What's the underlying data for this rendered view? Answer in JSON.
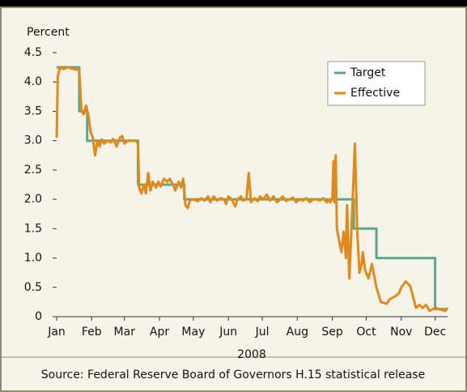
{
  "chart_data": {
    "type": "line",
    "title": "Percent",
    "x_label": "2008",
    "source": "Source: Federal Reserve Board of Governors H.15 statistical release",
    "xlim": [
      0,
      346
    ],
    "xticks": [
      {
        "value": 0,
        "label": "Jan"
      },
      {
        "value": 31,
        "label": "Feb"
      },
      {
        "value": 60,
        "label": "Mar"
      },
      {
        "value": 91,
        "label": "Apr"
      },
      {
        "value": 121,
        "label": "May"
      },
      {
        "value": 152,
        "label": "Jun"
      },
      {
        "value": 182,
        "label": "Jul"
      },
      {
        "value": 213,
        "label": "Aug"
      },
      {
        "value": 244,
        "label": "Sep"
      },
      {
        "value": 274,
        "label": "Oct"
      },
      {
        "value": 305,
        "label": "Nov"
      },
      {
        "value": 335,
        "label": "Dec"
      }
    ],
    "ylim": [
      0,
      4.5
    ],
    "yticks": [
      0,
      0.5,
      {
        "value": 1,
        "label": "1.0"
      },
      1.5,
      {
        "value": 2,
        "label": "2.0"
      },
      2.5,
      {
        "value": 3,
        "label": "3.0"
      },
      3.5,
      {
        "value": 4,
        "label": "4.0"
      },
      4.5
    ],
    "grid": false,
    "legend": "upper right",
    "series": [
      {
        "name": "Target",
        "color": "#5fa58a",
        "x": [
          0,
          20,
          20,
          27,
          27,
          72,
          72,
          113,
          113,
          263,
          263,
          283,
          283,
          335,
          335,
          346
        ],
        "values": [
          4.25,
          4.25,
          3.5,
          3.5,
          3.0,
          3.0,
          2.25,
          2.25,
          2.0,
          2.0,
          1.5,
          1.5,
          1.0,
          1.0,
          0.13,
          0.13
        ]
      },
      {
        "name": "Effective",
        "color": "#e0891c",
        "x": [
          0,
          1,
          3,
          6,
          10,
          15,
          20,
          22,
          24,
          26,
          28,
          30,
          32,
          34,
          36,
          38,
          40,
          42,
          45,
          48,
          50,
          53,
          56,
          58,
          60,
          63,
          66,
          70,
          72,
          73,
          75,
          77,
          79,
          81,
          83,
          85,
          88,
          90,
          92,
          95,
          98,
          100,
          103,
          105,
          108,
          110,
          112,
          114,
          116,
          118,
          120,
          125,
          128,
          131,
          134,
          136,
          139,
          142,
          145,
          148,
          150,
          152,
          155,
          158,
          160,
          163,
          165,
          168,
          170,
          172,
          175,
          178,
          180,
          183,
          186,
          189,
          192,
          195,
          198,
          200,
          203,
          206,
          209,
          212,
          215,
          218,
          221,
          224,
          227,
          230,
          233,
          236,
          239,
          241,
          242,
          244,
          245,
          246,
          247,
          248,
          250,
          252,
          254,
          256,
          257,
          259,
          261,
          264,
          266,
          268,
          270,
          271,
          273,
          276,
          279,
          283,
          287,
          292,
          295,
          300,
          303,
          305,
          309,
          313,
          316,
          318,
          321,
          324,
          327,
          330,
          335,
          340,
          344,
          346
        ],
        "values": [
          3.05,
          4.1,
          4.25,
          4.22,
          4.25,
          4.22,
          4.2,
          3.5,
          3.45,
          3.6,
          3.45,
          3.15,
          3.05,
          2.75,
          3.0,
          2.9,
          3.02,
          2.95,
          3.0,
          2.97,
          3.03,
          2.9,
          3.05,
          3.08,
          2.95,
          3.0,
          3.0,
          3.0,
          2.95,
          2.2,
          2.1,
          2.25,
          2.1,
          2.45,
          2.15,
          2.3,
          2.2,
          2.3,
          2.22,
          2.35,
          2.3,
          2.35,
          2.25,
          2.15,
          2.3,
          2.2,
          2.35,
          1.9,
          1.85,
          1.98,
          2.0,
          1.97,
          2.02,
          1.98,
          2.05,
          1.95,
          2.05,
          1.98,
          2.02,
          2.0,
          1.92,
          2.05,
          2.0,
          1.88,
          2.0,
          2.05,
          1.98,
          2.0,
          2.45,
          1.95,
          2.02,
          1.97,
          2.05,
          2.0,
          2.08,
          1.98,
          2.05,
          1.95,
          2.0,
          2.05,
          1.97,
          2.0,
          2.03,
          1.95,
          2.0,
          1.98,
          2.02,
          1.95,
          2.0,
          2.0,
          1.98,
          2.02,
          1.95,
          2.0,
          1.95,
          2.0,
          2.65,
          1.95,
          2.75,
          1.5,
          1.3,
          1.1,
          1.45,
          1.0,
          1.9,
          0.65,
          1.5,
          2.95,
          1.5,
          0.75,
          0.9,
          1.1,
          0.8,
          0.65,
          0.9,
          0.5,
          0.25,
          0.22,
          0.3,
          0.35,
          0.4,
          0.5,
          0.6,
          0.52,
          0.3,
          0.15,
          0.2,
          0.15,
          0.2,
          0.1,
          0.15,
          0.12,
          0.1,
          0.15
        ]
      }
    ]
  }
}
